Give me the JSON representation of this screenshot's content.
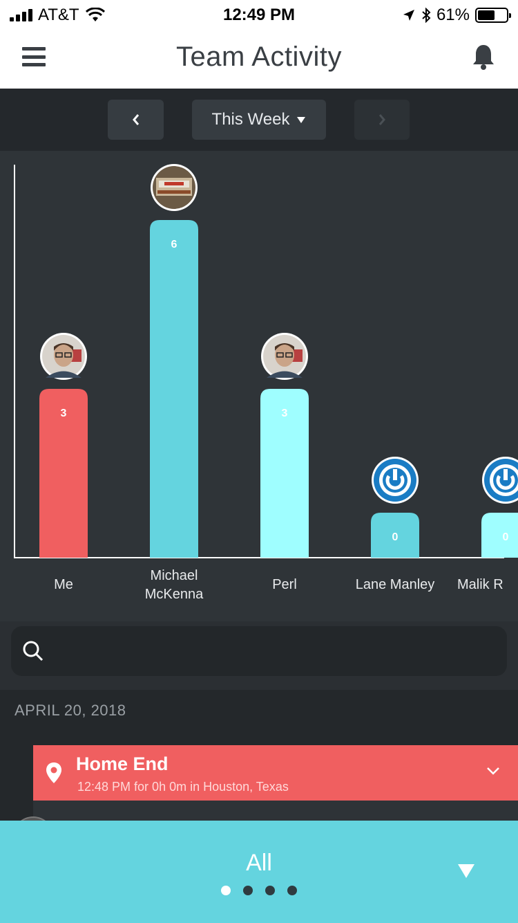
{
  "status_bar": {
    "carrier": "AT&T",
    "time": "12:49 PM",
    "battery_percent": "61%",
    "battery_level": 0.61
  },
  "header": {
    "title": "Team Activity"
  },
  "period": {
    "label": "This Week"
  },
  "chart_data": {
    "type": "bar",
    "categories": [
      "Me",
      "Michael McKenna",
      "Perl",
      "Lane Manley",
      "Malik R"
    ],
    "values": [
      3,
      6,
      3,
      0,
      0
    ],
    "colors": [
      "#f05f60",
      "#64d4df",
      "#9ffeff",
      "#64d4df",
      "#9ffeff"
    ],
    "avatars": [
      "photo",
      "truck-photo",
      "photo",
      "power-logo",
      "power-logo"
    ],
    "ylim": [
      0,
      6
    ],
    "labels": [
      "Me",
      "Michael McKenna",
      "Perl",
      "Lane Manley",
      "Malik R"
    ]
  },
  "search": {
    "placeholder": ""
  },
  "feed": {
    "date": "APRIL 20, 2018",
    "event": {
      "name": "Home End",
      "detail": "12:48 PM for 0h 0m in Houston, Texas",
      "color": "#f05f60"
    }
  },
  "bottom": {
    "filter": "All",
    "page_count": 4,
    "active_page": 1
  }
}
